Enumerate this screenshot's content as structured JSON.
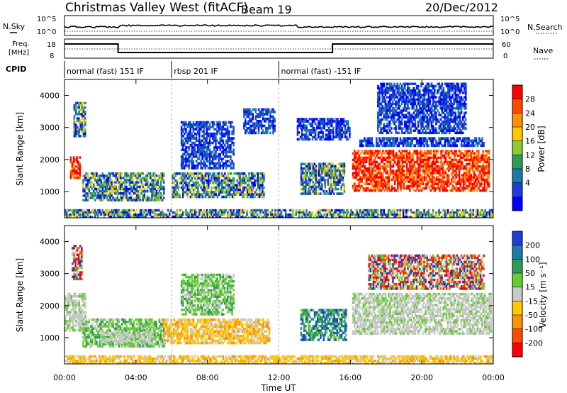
{
  "header": {
    "title": "Christmas Valley West (fitACF)",
    "beam": "Beam 19",
    "date": "20/Dec/2012"
  },
  "top_panels": {
    "nsky_label": "N.Sky",
    "nsearch_label": "N.Search",
    "nsky_ticks": [
      "10^5",
      "10^0"
    ],
    "freq_label_line1": "Freq.",
    "freq_label_line2": "[MHz]",
    "freq_ticks": [
      "18",
      "8"
    ],
    "nave_label": "Nave",
    "nave_ticks": [
      "60",
      "0"
    ],
    "cpid_label": "CPID",
    "cpid_segments": [
      {
        "label": "normal (fast) 151 IF",
        "start_h": 0,
        "end_h": 6
      },
      {
        "label": "rbsp 201 IF",
        "start_h": 6,
        "end_h": 12
      },
      {
        "label": "normal (fast) -151 IF",
        "start_h": 12,
        "end_h": 24
      }
    ],
    "freq_steps": [
      {
        "start_h": 0,
        "end_h": 3,
        "level": "high"
      },
      {
        "start_h": 3,
        "end_h": 15,
        "level": "low"
      },
      {
        "start_h": 15,
        "end_h": 24,
        "level": "high"
      }
    ]
  },
  "chart_data": [
    {
      "type": "heatmap",
      "title": "Power",
      "ylabel": "Slant Range [km]",
      "xlabel": "Time UT",
      "xlim": [
        0,
        24
      ],
      "ylim": [
        180,
        4500
      ],
      "y_ticks": [
        1000,
        2000,
        3000,
        4000
      ],
      "x_ticks": [
        "00:00",
        "04:00",
        "08:00",
        "12:00",
        "16:00",
        "20:00",
        "00:00"
      ],
      "colorbar": {
        "label": "Power [dB]",
        "ticks": [
          "28",
          "24",
          "20",
          "16",
          "12",
          "8",
          "4"
        ],
        "colors": [
          "#ff0000",
          "#ff4800",
          "#ff9000",
          "#ffc800",
          "#88cc33",
          "#2f9a5a",
          "#1a7aaa",
          "#1d3dd6",
          "#0000ff"
        ]
      },
      "regions": [
        {
          "t0": 0.3,
          "t1": 0.9,
          "r0": 1400,
          "r1": 2100,
          "value": "high"
        },
        {
          "t0": 0.5,
          "t1": 1.2,
          "r0": 2700,
          "r1": 3800,
          "value": "mid"
        },
        {
          "t0": 1.0,
          "t1": 5.6,
          "r0": 700,
          "r1": 1600,
          "value": "mid"
        },
        {
          "t0": 6.0,
          "t1": 11.2,
          "r0": 800,
          "r1": 1600,
          "value": "mid"
        },
        {
          "t0": 6.5,
          "t1": 9.5,
          "r0": 1700,
          "r1": 3200,
          "value": "low"
        },
        {
          "t0": 10.0,
          "t1": 11.8,
          "r0": 2800,
          "r1": 3600,
          "value": "low"
        },
        {
          "t0": 13.2,
          "t1": 15.7,
          "r0": 900,
          "r1": 1900,
          "value": "mid"
        },
        {
          "t0": 13.0,
          "t1": 16.0,
          "r0": 2600,
          "r1": 3300,
          "value": "low"
        },
        {
          "t0": 16.1,
          "t1": 23.8,
          "r0": 1000,
          "r1": 2300,
          "value": "high"
        },
        {
          "t0": 16.5,
          "t1": 23.5,
          "r0": 2400,
          "r1": 2700,
          "value": "low"
        },
        {
          "t0": 17.5,
          "t1": 22.5,
          "r0": 2800,
          "r1": 4400,
          "value": "low"
        },
        {
          "t0": 0.0,
          "t1": 24.0,
          "r0": 180,
          "r1": 450,
          "value": "mid"
        }
      ]
    },
    {
      "type": "heatmap",
      "title": "Velocity",
      "ylabel": "Slant Range [km]",
      "xlabel": "Time UT",
      "xlim": [
        0,
        24
      ],
      "ylim": [
        180,
        4500
      ],
      "y_ticks": [
        1000,
        2000,
        3000,
        4000
      ],
      "x_ticks": [
        "00:00",
        "04:00",
        "08:00",
        "12:00",
        "16:00",
        "20:00",
        "00:00"
      ],
      "colorbar": {
        "label": "Velocity [m s⁻¹]",
        "ticks": [
          "200",
          "100",
          "50",
          "15",
          "-15",
          "-50",
          "-100",
          "-200"
        ],
        "colors": [
          "#1d3dd6",
          "#1a7aaa",
          "#2f9a5a",
          "#66cc33",
          "#c8c8c8",
          "#ffc800",
          "#ff9000",
          "#ff4800",
          "#ff0000"
        ]
      },
      "regions": [
        {
          "t0": 0.0,
          "t1": 1.2,
          "r0": 1200,
          "r1": 2400,
          "value": "zero"
        },
        {
          "t0": 0.4,
          "t1": 1.0,
          "r0": 2800,
          "r1": 3900,
          "value": "mixed"
        },
        {
          "t0": 1.0,
          "t1": 5.6,
          "r0": 700,
          "r1": 1600,
          "value": "pos"
        },
        {
          "t0": 2.0,
          "t1": 5.0,
          "r0": 800,
          "r1": 1200,
          "value": "zero"
        },
        {
          "t0": 5.5,
          "t1": 11.5,
          "r0": 800,
          "r1": 1600,
          "value": "neg"
        },
        {
          "t0": 6.5,
          "t1": 9.5,
          "r0": 1700,
          "r1": 3000,
          "value": "pos"
        },
        {
          "t0": 13.2,
          "t1": 15.8,
          "r0": 900,
          "r1": 1900,
          "value": "fast"
        },
        {
          "t0": 16.1,
          "t1": 23.9,
          "r0": 1100,
          "r1": 2400,
          "value": "zero"
        },
        {
          "t0": 17.0,
          "t1": 23.5,
          "r0": 2500,
          "r1": 3600,
          "value": "mixed"
        },
        {
          "t0": 0.0,
          "t1": 24.0,
          "r0": 180,
          "r1": 450,
          "value": "neg"
        }
      ]
    }
  ]
}
